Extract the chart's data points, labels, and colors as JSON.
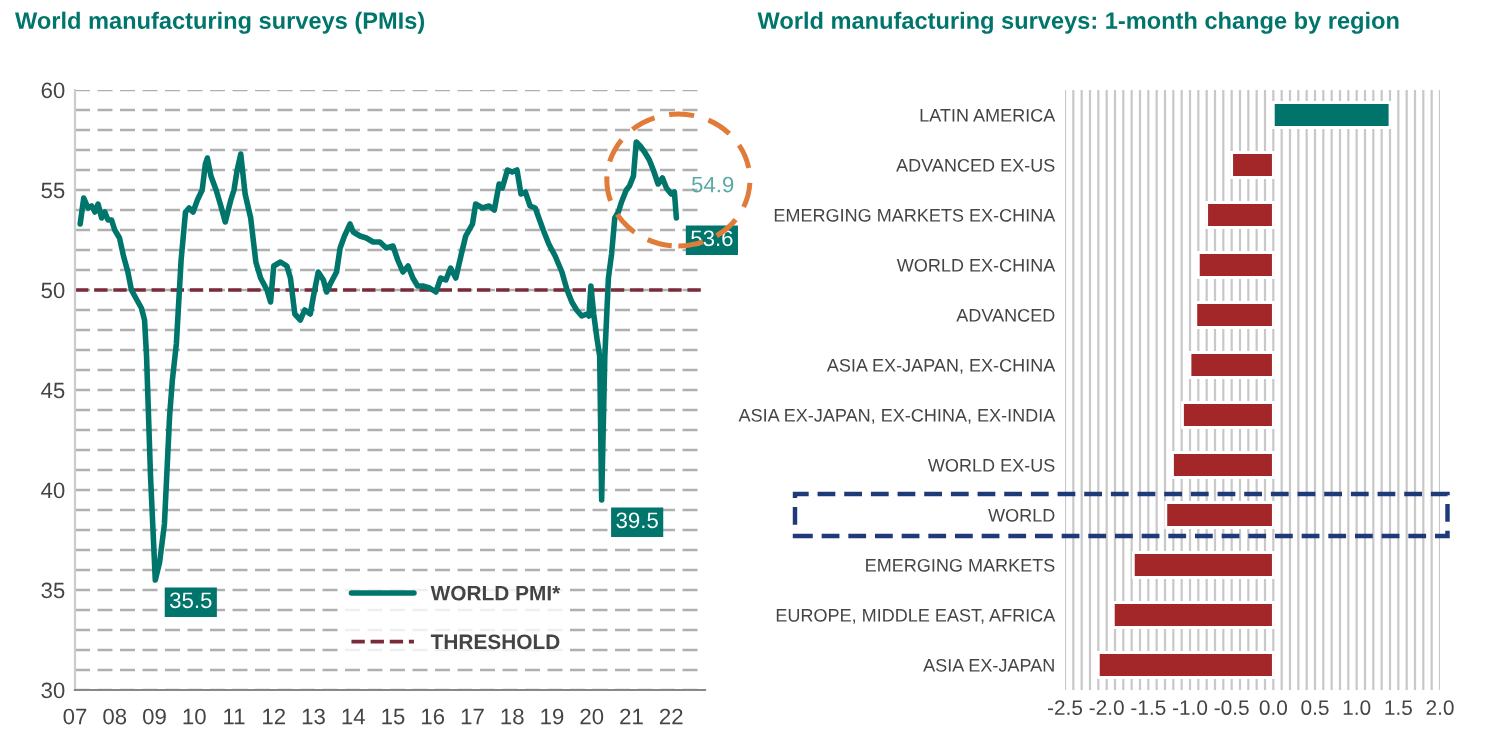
{
  "chart_data": [
    {
      "type": "line",
      "title": "World manufacturing surveys (PMIs)",
      "series": [
        {
          "name": "WORLD PMI*",
          "color": "#00756c",
          "x": [
            2007.13,
            2007.22,
            2007.33,
            2007.42,
            2007.5,
            2007.58,
            2007.67,
            2007.75,
            2007.83,
            2007.92,
            2008.0,
            2008.12,
            2008.22,
            2008.33,
            2008.42,
            2008.53,
            2008.67,
            2008.75,
            2008.8,
            2008.9,
            2009.02,
            2009.13,
            2009.25,
            2009.38,
            2009.45,
            2009.55,
            2009.67,
            2009.78,
            2009.87,
            2009.97,
            2010.08,
            2010.2,
            2010.28,
            2010.33,
            2010.42,
            2010.55,
            2010.67,
            2010.78,
            2010.92,
            2011.0,
            2011.08,
            2011.17,
            2011.28,
            2011.42,
            2011.55,
            2011.67,
            2011.83,
            2011.92,
            2012.0,
            2012.17,
            2012.33,
            2012.42,
            2012.53,
            2012.67,
            2012.78,
            2012.92,
            2013.0,
            2013.12,
            2013.25,
            2013.33,
            2013.42,
            2013.58,
            2013.67,
            2013.78,
            2013.92,
            2014.0,
            2014.17,
            2014.33,
            2014.5,
            2014.67,
            2014.83,
            2015.0,
            2015.12,
            2015.25,
            2015.38,
            2015.5,
            2015.62,
            2015.75,
            2015.92,
            2016.08,
            2016.2,
            2016.33,
            2016.45,
            2016.58,
            2016.72,
            2016.83,
            2017.0,
            2017.08,
            2017.25,
            2017.42,
            2017.55,
            2017.67,
            2017.75,
            2017.88,
            2018.0,
            2018.12,
            2018.22,
            2018.33,
            2018.45,
            2018.58,
            2018.67,
            2018.78,
            2018.92,
            2019.08,
            2019.25,
            2019.38,
            2019.5,
            2019.62,
            2019.75,
            2019.88,
            2019.93,
            2019.98,
            2020.05,
            2020.13,
            2020.2,
            2020.25,
            2020.33,
            2020.42,
            2020.5,
            2020.58,
            2020.67,
            2020.75,
            2020.87,
            2020.95,
            2021.05,
            2021.12,
            2021.22,
            2021.33,
            2021.45,
            2021.55,
            2021.67,
            2021.78,
            2021.88,
            2022.0,
            2022.08,
            2022.13
          ],
          "values": [
            53.3,
            54.6,
            54.1,
            54.2,
            53.9,
            54.3,
            53.6,
            53.9,
            53.5,
            53.5,
            53.0,
            52.6,
            51.7,
            50.9,
            50.0,
            49.6,
            49.1,
            48.5,
            46.7,
            40.7,
            35.5,
            36.4,
            38.3,
            43.7,
            45.5,
            47.3,
            51.5,
            53.9,
            54.1,
            53.9,
            54.5,
            55.0,
            56.3,
            56.6,
            55.7,
            55.0,
            54.2,
            53.4,
            54.5,
            55.0,
            56.0,
            56.8,
            54.8,
            53.6,
            51.4,
            50.6,
            50.0,
            49.4,
            51.2,
            51.4,
            51.2,
            50.6,
            48.8,
            48.5,
            49.0,
            48.8,
            49.7,
            50.9,
            50.5,
            49.9,
            50.3,
            50.9,
            52.1,
            52.7,
            53.3,
            52.9,
            52.7,
            52.6,
            52.4,
            52.4,
            52.1,
            52.2,
            51.5,
            50.9,
            51.2,
            50.6,
            50.2,
            50.2,
            50.1,
            49.9,
            50.6,
            50.5,
            51.1,
            50.6,
            51.8,
            52.7,
            53.3,
            54.3,
            54.1,
            54.2,
            54.0,
            55.3,
            55.1,
            56.0,
            55.9,
            56.0,
            54.8,
            54.9,
            54.2,
            54.1,
            53.6,
            53.0,
            52.3,
            51.7,
            50.9,
            50.0,
            49.4,
            49.0,
            48.7,
            48.8,
            48.7,
            50.2,
            48.8,
            47.6,
            46.7,
            39.5,
            46.7,
            50.6,
            51.8,
            53.6,
            53.9,
            54.4,
            55.0,
            55.2,
            55.7,
            57.4,
            57.2,
            56.9,
            56.5,
            56.0,
            55.3,
            55.6,
            55.1,
            54.8,
            54.9,
            53.6
          ]
        }
      ],
      "ref_lines": [
        {
          "axis": "y",
          "value": 50,
          "label": "THRESHOLD",
          "color": "#7b2a3a",
          "line_style": "dashed"
        }
      ],
      "annotations": [
        {
          "text": "54.9",
          "x": 2022.08,
          "y": 54.9
        },
        {
          "text": "53.6",
          "x": 2022.13,
          "y": 53.6
        },
        {
          "text": "35.5",
          "x": 2009.02,
          "y": 35.5
        },
        {
          "text": "39.5",
          "x": 2020.25,
          "y": 39.5
        }
      ],
      "xlim": [
        2007,
        2022.85
      ],
      "ylim": [
        30,
        60
      ],
      "xticks": [
        {
          "value": 2007,
          "label": "07"
        },
        {
          "value": 2008,
          "label": "08"
        },
        {
          "value": 2009,
          "label": "09"
        },
        {
          "value": 2010,
          "label": "10"
        },
        {
          "value": 2011,
          "label": "11"
        },
        {
          "value": 2012,
          "label": "12"
        },
        {
          "value": 2013,
          "label": "13"
        },
        {
          "value": 2014,
          "label": "14"
        },
        {
          "value": 2015,
          "label": "15"
        },
        {
          "value": 2016,
          "label": "16"
        },
        {
          "value": 2017,
          "label": "17"
        },
        {
          "value": 2018,
          "label": "18"
        },
        {
          "value": 2019,
          "label": "19"
        },
        {
          "value": 2020,
          "label": "20"
        },
        {
          "value": 2021,
          "label": "21"
        },
        {
          "value": 2022,
          "label": "22"
        }
      ],
      "yticks": [
        30,
        {
          "value": 31,
          "label": null
        },
        {
          "value": 32,
          "label": null
        },
        {
          "value": 33,
          "label": null
        },
        {
          "value": 34,
          "label": null
        },
        35,
        {
          "value": 36,
          "label": null
        },
        {
          "value": 37,
          "label": null
        },
        {
          "value": 38,
          "label": null
        },
        {
          "value": 39,
          "label": null
        },
        40,
        {
          "value": 41,
          "label": null
        },
        {
          "value": 42,
          "label": null
        },
        {
          "value": 43,
          "label": null
        },
        {
          "value": 44,
          "label": null
        },
        45,
        {
          "value": 46,
          "label": null
        },
        {
          "value": 47,
          "label": null
        },
        {
          "value": 48,
          "label": null
        },
        {
          "value": 49,
          "label": null
        },
        50,
        {
          "value": 51,
          "label": null
        },
        {
          "value": 52,
          "label": null
        },
        {
          "value": 53,
          "label": null
        },
        {
          "value": 54,
          "label": null
        },
        55,
        {
          "value": 56,
          "label": null
        },
        {
          "value": 57,
          "label": null
        },
        {
          "value": 58,
          "label": null
        },
        {
          "value": 59,
          "label": null
        },
        60
      ],
      "grid": "y",
      "legend": "bottom right",
      "marker": "none",
      "line_style": "solid"
    },
    {
      "type": "bar",
      "orientation": "horizontal",
      "title": "World manufacturing surveys: 1-month change by region",
      "categories": [
        "LATIN AMERICA",
        "ADVANCED EX-US",
        "EMERGING MARKETS EX-CHINA",
        "WORLD EX-CHINA",
        "ADVANCED",
        "ASIA EX-JAPAN, EX-CHINA",
        "ASIA EX-JAPAN, EX-CHINA, EX-INDIA",
        "WORLD EX-US",
        "WORLD",
        "EMERGING MARKETS",
        "EUROPE, MIDDLE EAST, AFRICA",
        "ASIA EX-JAPAN"
      ],
      "values": [
        1.4,
        -0.5,
        -0.8,
        -0.9,
        -0.93,
        -1.0,
        -1.09,
        -1.21,
        -1.29,
        -1.68,
        -1.92,
        -2.1
      ],
      "colors": [
        "#00736b",
        "#a32628",
        "#a32628",
        "#a32628",
        "#a32628",
        "#a32628",
        "#a32628",
        "#a32628",
        "#a32628",
        "#a32628",
        "#a32628",
        "#a32628"
      ],
      "xlim": [
        -2.5,
        2.0
      ],
      "xticks": [
        -2.5,
        {
          "value": -2.4,
          "label": null
        },
        {
          "value": -2.3,
          "label": null
        },
        {
          "value": -2.2,
          "label": null
        },
        {
          "value": -2.1,
          "label": null
        },
        {
          "value": -2.0,
          "label": "-2.0"
        },
        {
          "value": -1.9,
          "label": null
        },
        {
          "value": -1.8,
          "label": null
        },
        {
          "value": -1.7,
          "label": null
        },
        {
          "value": -1.6,
          "label": null
        },
        -1.5,
        {
          "value": -1.4,
          "label": null
        },
        {
          "value": -1.3,
          "label": null
        },
        {
          "value": -1.2,
          "label": null
        },
        {
          "value": -1.1,
          "label": null
        },
        {
          "value": -1.0,
          "label": "-1.0"
        },
        {
          "value": -0.9,
          "label": null
        },
        {
          "value": -0.8,
          "label": null
        },
        {
          "value": -0.7,
          "label": null
        },
        {
          "value": -0.6,
          "label": null
        },
        -0.5,
        {
          "value": -0.4,
          "label": null
        },
        {
          "value": -0.3,
          "label": null
        },
        {
          "value": -0.2,
          "label": null
        },
        {
          "value": -0.1,
          "label": null
        },
        {
          "value": 0.0,
          "label": "0.0"
        },
        {
          "value": 0.1,
          "label": null
        },
        {
          "value": 0.2,
          "label": null
        },
        {
          "value": 0.3,
          "label": null
        },
        {
          "value": 0.4,
          "label": null
        },
        0.5,
        {
          "value": 0.6,
          "label": null
        },
        {
          "value": 0.7,
          "label": null
        },
        {
          "value": 0.8,
          "label": null
        },
        {
          "value": 0.9,
          "label": null
        },
        {
          "value": 1.0,
          "label": "1.0"
        },
        {
          "value": 1.1,
          "label": null
        },
        {
          "value": 1.2,
          "label": null
        },
        {
          "value": 1.3,
          "label": null
        },
        {
          "value": 1.4,
          "label": null
        },
        1.5,
        {
          "value": 1.6,
          "label": null
        },
        {
          "value": 1.7,
          "label": null
        },
        {
          "value": 1.8,
          "label": null
        },
        {
          "value": 1.9,
          "label": null
        },
        {
          "value": 2.0,
          "label": "2.0"
        }
      ],
      "grid": "x"
    }
  ]
}
